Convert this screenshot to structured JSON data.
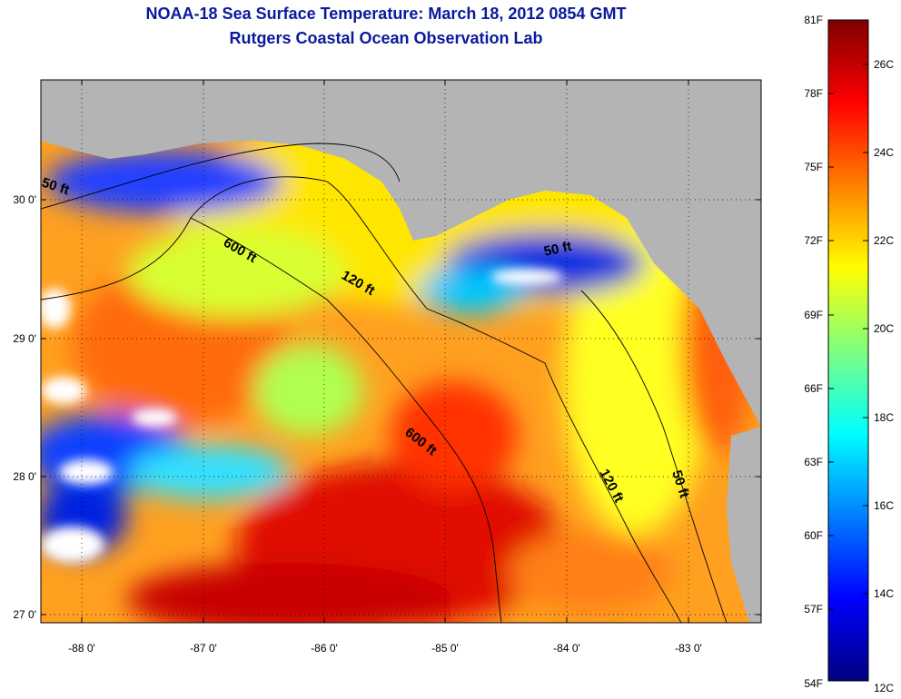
{
  "title": "NOAA-18 Sea Surface Temperature:  March 18, 2012 0854 GMT",
  "subtitle": "Rutgers Coastal Ocean Observation Lab",
  "axes": {
    "lon_ticks": [
      "-88 0'",
      "-87 0'",
      "-86 0'",
      "-85 0'",
      "-84 0'",
      "-83 0'"
    ],
    "lat_ticks": [
      "30 0'",
      "29 0'",
      "28 0'",
      "27 0'"
    ]
  },
  "contours": [
    {
      "label": "50 ft",
      "depth_ft": 50
    },
    {
      "label": "120 ft",
      "depth_ft": 120
    },
    {
      "label": "600 ft",
      "depth_ft": 600
    },
    {
      "label": "600 ft",
      "depth_ft": 600
    },
    {
      "label": "120 ft",
      "depth_ft": 120
    },
    {
      "label": "50 ft",
      "depth_ft": 50
    },
    {
      "label": "50 ft",
      "depth_ft": 50
    }
  ],
  "colorbar": {
    "fahrenheit_labels": [
      "81F",
      "78F",
      "75F",
      "72F",
      "69F",
      "66F",
      "63F",
      "60F",
      "57F",
      "54F"
    ],
    "celsius_labels": [
      "26C",
      "24C",
      "22C",
      "20C",
      "18C",
      "16C",
      "14C",
      "12C"
    ],
    "range_f": [
      54,
      81
    ],
    "colors": [
      "#00007f",
      "#0000ff",
      "#007fff",
      "#00ffff",
      "#7fff7f",
      "#ffff00",
      "#ff7f00",
      "#ff0000",
      "#7f0000"
    ]
  },
  "land_color": "#b4b4b4",
  "cloud_color": "#ffffff"
}
